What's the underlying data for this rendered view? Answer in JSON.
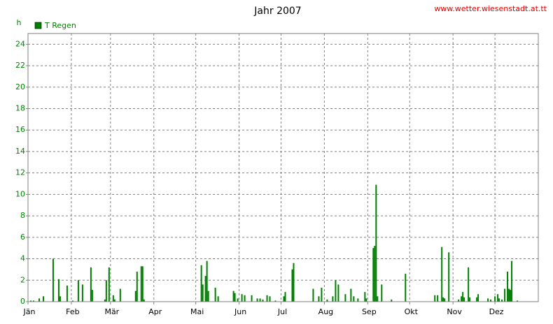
{
  "chart_data": {
    "type": "bar",
    "title": "Jahr 2007",
    "source": "www.wetter.wiesenstadt.at.tt",
    "y_label": "h",
    "legend": "top-left",
    "grid": true,
    "xlim": [
      0,
      365
    ],
    "xticks": [
      {
        "value": 0,
        "label": "Jän"
      },
      {
        "value": 31,
        "label": "Feb"
      },
      {
        "value": 59,
        "label": "Mär"
      },
      {
        "value": 90,
        "label": "Apr"
      },
      {
        "value": 120,
        "label": "Mai"
      },
      {
        "value": 151,
        "label": "Jun"
      },
      {
        "value": 181,
        "label": "Jul"
      },
      {
        "value": 212,
        "label": "Aug"
      },
      {
        "value": 243,
        "label": "Sep"
      },
      {
        "value": 273,
        "label": "Okt"
      },
      {
        "value": 304,
        "label": "Nov"
      },
      {
        "value": 334,
        "label": "Dez"
      }
    ],
    "ylim": [
      0,
      25
    ],
    "yticks": [
      0,
      2,
      4,
      6,
      8,
      10,
      12,
      14,
      16,
      18,
      20,
      22,
      24
    ],
    "series": [
      {
        "name": "T Regen",
        "color": "#008000",
        "x": [
          2,
          4,
          8,
          11,
          18,
          22,
          23,
          28,
          32,
          36,
          39,
          45,
          46,
          55,
          56,
          58,
          61,
          62,
          66,
          77,
          78,
          81,
          82,
          83,
          124,
          125,
          127,
          128,
          129,
          134,
          136,
          147,
          148,
          150,
          153,
          155,
          160,
          164,
          166,
          168,
          171,
          173,
          177,
          183,
          184,
          189,
          190,
          204,
          208,
          210,
          214,
          218,
          220,
          222,
          227,
          231,
          233,
          236,
          241,
          242,
          247,
          248,
          249,
          250,
          253,
          260,
          270,
          291,
          293,
          296,
          297,
          298,
          301,
          308,
          310,
          311,
          312,
          315,
          316,
          321,
          322,
          329,
          331,
          334,
          336,
          337,
          339,
          341,
          343,
          344,
          345,
          346,
          350
        ],
        "values": [
          0.1,
          0.1,
          0.3,
          0.5,
          4.0,
          2.1,
          0.5,
          1.5,
          0.1,
          2.0,
          1.6,
          3.2,
          1.1,
          0.2,
          2.0,
          3.2,
          0.6,
          0.2,
          1.2,
          1.0,
          2.8,
          3.3,
          3.3,
          0.2,
          3.4,
          1.6,
          2.4,
          3.8,
          1.0,
          1.3,
          0.5,
          1.0,
          0.8,
          0.3,
          0.7,
          0.6,
          0.6,
          0.3,
          0.3,
          0.2,
          0.6,
          0.5,
          0.1,
          0.5,
          0.9,
          3.0,
          3.6,
          1.2,
          0.5,
          1.3,
          0.2,
          0.5,
          2.0,
          1.6,
          0.7,
          1.2,
          0.5,
          0.3,
          0.9,
          0.3,
          5.0,
          5.2,
          10.9,
          0.5,
          1.6,
          0.2,
          2.6,
          0.6,
          0.6,
          5.1,
          0.4,
          0.3,
          4.6,
          0.2,
          0.5,
          0.9,
          0.4,
          3.2,
          0.4,
          0.4,
          0.7,
          0.3,
          0.2,
          0.5,
          0.7,
          0.3,
          0.2,
          1.2,
          2.8,
          1.2,
          1.1,
          3.8,
          0.1
        ]
      }
    ]
  }
}
